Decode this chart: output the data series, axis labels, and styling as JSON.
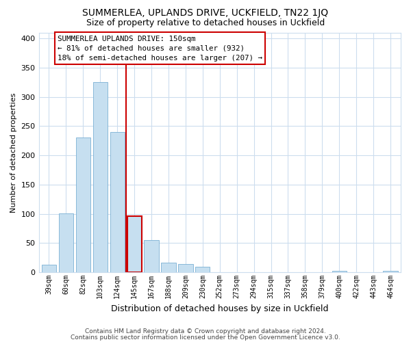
{
  "title": "SUMMERLEA, UPLANDS DRIVE, UCKFIELD, TN22 1JQ",
  "subtitle": "Size of property relative to detached houses in Uckfield",
  "xlabel": "Distribution of detached houses by size in Uckfield",
  "ylabel": "Number of detached properties",
  "bar_labels": [
    "39sqm",
    "60sqm",
    "82sqm",
    "103sqm",
    "124sqm",
    "145sqm",
    "167sqm",
    "188sqm",
    "209sqm",
    "230sqm",
    "252sqm",
    "273sqm",
    "294sqm",
    "315sqm",
    "337sqm",
    "358sqm",
    "379sqm",
    "400sqm",
    "422sqm",
    "443sqm",
    "464sqm"
  ],
  "bar_values": [
    13,
    101,
    230,
    325,
    240,
    96,
    55,
    16,
    14,
    9,
    0,
    0,
    0,
    0,
    0,
    0,
    0,
    2,
    0,
    0,
    2
  ],
  "bar_color": "#c6dff0",
  "bar_edge_color": "#7ab0d4",
  "highlight_bar_index": 5,
  "highlight_bar_edge_color": "#cc0000",
  "vline_color": "#cc0000",
  "ylim": [
    0,
    410
  ],
  "yticks": [
    0,
    50,
    100,
    150,
    200,
    250,
    300,
    350,
    400
  ],
  "annotation_title": "SUMMERLEA UPLANDS DRIVE: 150sqm",
  "annotation_line1": "← 81% of detached houses are smaller (932)",
  "annotation_line2": "18% of semi-detached houses are larger (207) →",
  "footer1": "Contains HM Land Registry data © Crown copyright and database right 2024.",
  "footer2": "Contains public sector information licensed under the Open Government Licence v3.0.",
  "background_color": "#ffffff",
  "grid_color": "#ccddee"
}
